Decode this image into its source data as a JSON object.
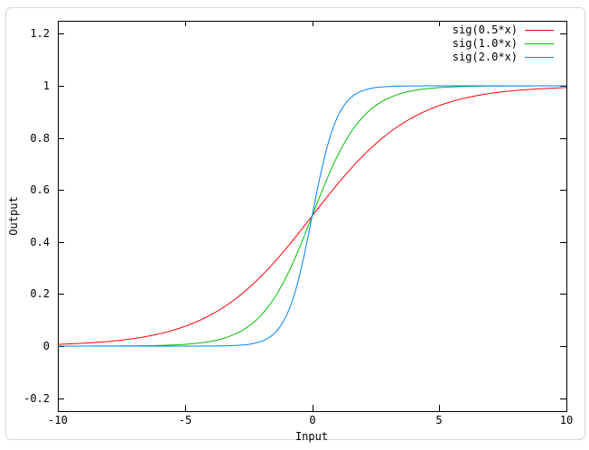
{
  "chart_data": {
    "type": "line",
    "xlabel": "Input",
    "ylabel": "Output",
    "xlim": [
      -10,
      10
    ],
    "ylim": [
      -0.25,
      1.25
    ],
    "grid": false,
    "legend_position": "top-right-inside",
    "x_ticks": [
      {
        "v": -10,
        "label": "-10"
      },
      {
        "v": -5,
        "label": "-5"
      },
      {
        "v": 0,
        "label": "0"
      },
      {
        "v": 5,
        "label": "5"
      },
      {
        "v": 10,
        "label": "10"
      }
    ],
    "y_ticks": [
      {
        "v": -0.2,
        "label": "-0.2"
      },
      {
        "v": 0,
        "label": "0"
      },
      {
        "v": 0.2,
        "label": "0.2"
      },
      {
        "v": 0.4,
        "label": "0.4"
      },
      {
        "v": 0.6,
        "label": "0.6"
      },
      {
        "v": 0.8,
        "label": "0.8"
      },
      {
        "v": 1,
        "label": "1"
      },
      {
        "v": 1.2,
        "label": "1.2"
      }
    ],
    "series": [
      {
        "name": "sig(0.5*x)",
        "function": "sigmoid",
        "k": 0.5,
        "color": "#ff0000"
      },
      {
        "name": "sig(1.0*x)",
        "function": "sigmoid",
        "k": 1.0,
        "color": "#00c000"
      },
      {
        "name": "sig(2.0*x)",
        "function": "sigmoid",
        "k": 2.0,
        "color": "#0080ff"
      }
    ],
    "sampled_points": {
      "x": [
        -10,
        -9,
        -8,
        -7,
        -6,
        -5,
        -4,
        -3,
        -2,
        -1,
        0,
        1,
        2,
        3,
        4,
        5,
        6,
        7,
        8,
        9,
        10
      ],
      "sig(0.5*x)": [
        0.0067,
        0.011,
        0.018,
        0.0293,
        0.0474,
        0.0759,
        0.1192,
        0.1824,
        0.2689,
        0.3775,
        0.5,
        0.6225,
        0.7311,
        0.8176,
        0.8808,
        0.9241,
        0.9526,
        0.9707,
        0.982,
        0.989,
        0.9933
      ],
      "sig(1.0*x)": [
        0.0,
        0.0001,
        0.0003,
        0.0009,
        0.0025,
        0.0067,
        0.018,
        0.0474,
        0.1192,
        0.2689,
        0.5,
        0.7311,
        0.8808,
        0.9526,
        0.982,
        0.9933,
        0.9975,
        0.9991,
        0.9997,
        0.9999,
        1.0
      ],
      "sig(2.0*x)": [
        0.0,
        0.0,
        0.0,
        0.0,
        0.0,
        0.0,
        0.0003,
        0.0025,
        0.018,
        0.1192,
        0.5,
        0.8808,
        0.982,
        0.9975,
        0.9997,
        1.0,
        1.0,
        1.0,
        1.0,
        1.0,
        1.0
      ]
    },
    "colors": {
      "axis": "#000000",
      "background": "#ffffff",
      "frame_border": "#d7d7d7"
    }
  }
}
